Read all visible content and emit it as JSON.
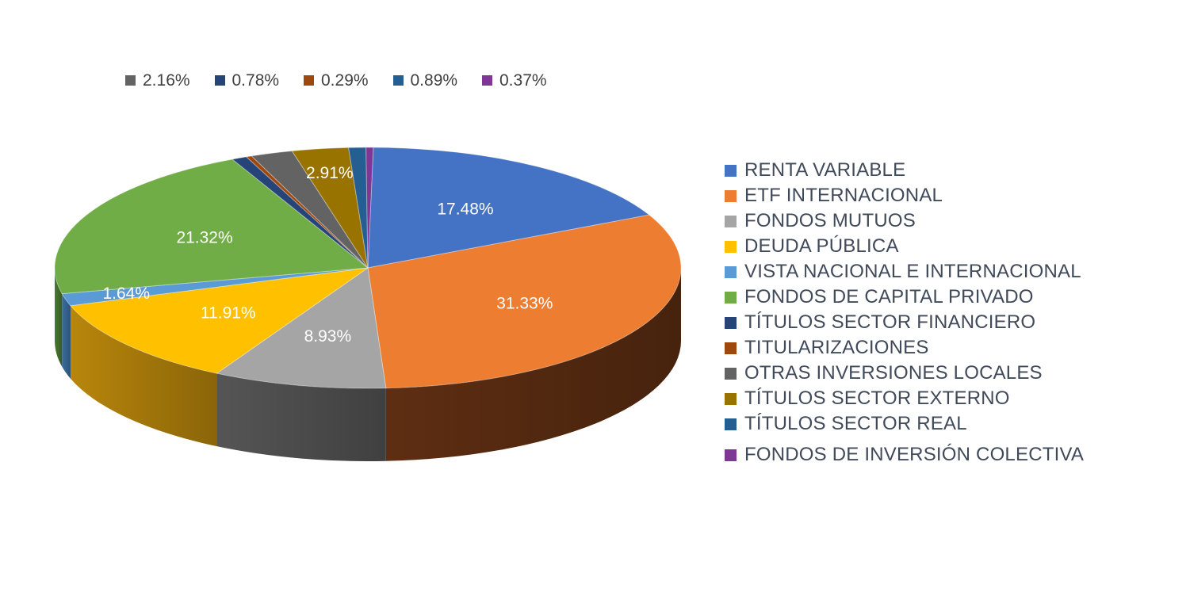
{
  "chart_data": {
    "type": "pie",
    "title": "",
    "style": "3d",
    "series": [
      {
        "category": "RENTA VARIABLE",
        "value": 17.48,
        "label": "17.48%",
        "color": "#4472C4",
        "dark": "#2A4A84"
      },
      {
        "category": "ETF INTERNACIONAL",
        "value": 31.33,
        "label": "31.33%",
        "color": "#ED7D31",
        "dark": "#5E2E12"
      },
      {
        "category": "FONDOS MUTUOS",
        "value": 8.93,
        "label": "8.93%",
        "color": "#A5A5A5",
        "dark": "#555555"
      },
      {
        "category": "DEUDA PÚBLICA",
        "value": 11.91,
        "label": "11.91%",
        "color": "#FFC000",
        "dark": "#B8860B"
      },
      {
        "category": "VISTA NACIONAL E INTERNACIONAL",
        "value": 1.64,
        "label": "1.64%",
        "color": "#5B9BD5",
        "dark": "#3B6E9E"
      },
      {
        "category": "FONDOS DE CAPITAL PRIVADO",
        "value": 21.32,
        "label": "21.32%",
        "color": "#70AD47",
        "dark": "#4A7A2E"
      },
      {
        "category": "TÍTULOS SECTOR FINANCIERO",
        "value": 0.78,
        "label": "0.78%",
        "color": "#264478",
        "dark": "#182C4E"
      },
      {
        "category": "TITULARIZACIONES",
        "value": 0.29,
        "label": "0.29%",
        "color": "#9E480E",
        "dark": "#5E2B08"
      },
      {
        "category": "OTRAS INVERSIONES LOCALES",
        "value": 2.16,
        "label": "2.16%",
        "color": "#636363",
        "dark": "#3A3A3A"
      },
      {
        "category": "TÍTULOS SECTOR EXTERNO",
        "value": 2.91,
        "label": "2.91%",
        "color": "#997300",
        "dark": "#5E4700"
      },
      {
        "category": "TÍTULOS SECTOR REAL",
        "value": 0.89,
        "label": "0.89%",
        "color": "#255E91",
        "dark": "#173A5A"
      },
      {
        "category": "FONDOS DE INVERSIÓN COLECTIVA",
        "value": 0.37,
        "label": "0.37%",
        "color": "#7E3794",
        "dark": "#4E225C"
      }
    ],
    "slice_labels_on_chart": [
      "RENTA VARIABLE",
      "ETF INTERNACIONAL",
      "FONDOS MUTUOS",
      "DEUDA PÚBLICA",
      "VISTA NACIONAL E INTERNACIONAL",
      "FONDOS DE CAPITAL PRIVADO",
      "TÍTULOS SECTOR EXTERNO"
    ],
    "top_legend": [
      {
        "label": "2.16%",
        "color": "#636363"
      },
      {
        "label": "0.78%",
        "color": "#264478"
      },
      {
        "label": "0.29%",
        "color": "#9E480E"
      },
      {
        "label": "0.89%",
        "color": "#255E91"
      },
      {
        "label": "0.37%",
        "color": "#7E3794"
      }
    ],
    "legend_position": "right"
  }
}
